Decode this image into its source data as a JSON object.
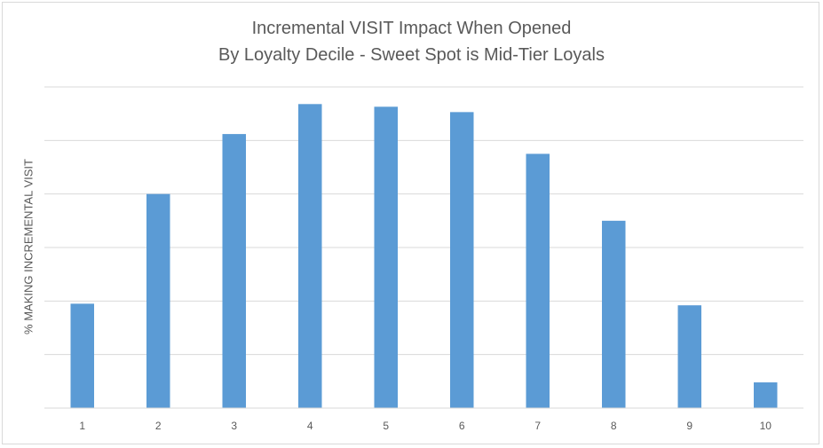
{
  "chart_data": {
    "type": "bar",
    "title": "Incremental VISIT Impact When Opened",
    "subtitle": "By Loyalty Decile - Sweet Spot is Mid-Tier Loyals",
    "xlabel": "",
    "ylabel": "% MAKING INCREMENTAL VISIT",
    "categories": [
      "1",
      "2",
      "3",
      "4",
      "5",
      "6",
      "7",
      "8",
      "9",
      "10"
    ],
    "values": [
      19.5,
      40,
      51.2,
      56.8,
      56.3,
      55.3,
      47.5,
      35,
      19.2,
      4.8
    ],
    "ylim": [
      0,
      60
    ],
    "y_ticks_labeled": false,
    "grid": true,
    "bar_color": "#5b9bd5",
    "grid_color": "#d9d9d9",
    "text_color": "#595959"
  }
}
